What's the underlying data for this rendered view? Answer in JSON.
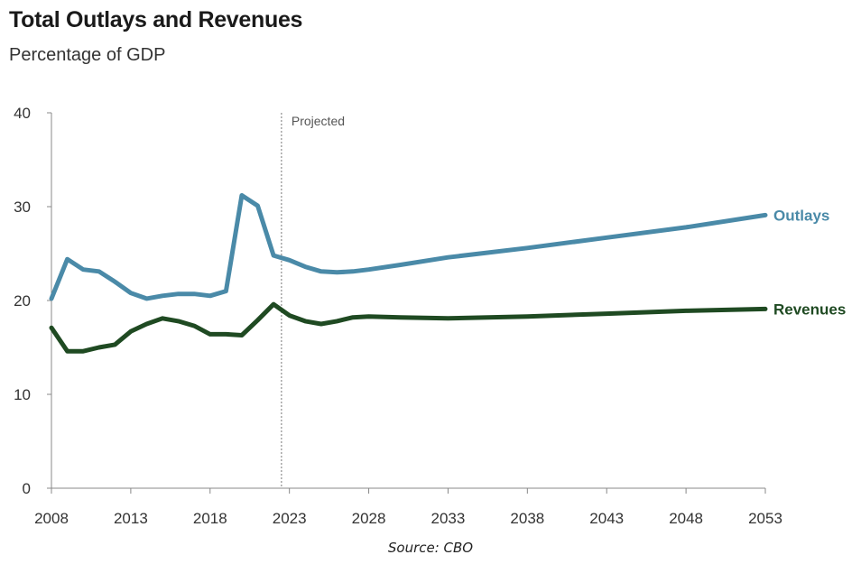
{
  "header": {
    "title": "Total Outlays and Revenues",
    "subtitle": "Percentage of GDP"
  },
  "footer": {
    "source": "Source: CBO"
  },
  "chart_data": {
    "type": "line",
    "title": "Total Outlays and Revenues",
    "subtitle": "Percentage of GDP",
    "xlabel": "",
    "ylabel": "",
    "xlim": [
      2008,
      2053
    ],
    "ylim": [
      0,
      40
    ],
    "x_ticks": [
      "2008",
      "2013",
      "2018",
      "2023",
      "2028",
      "2033",
      "2038",
      "2043",
      "2048",
      "2053"
    ],
    "y_ticks": [
      "0",
      "10",
      "20",
      "30",
      "40"
    ],
    "grid": false,
    "annotation": {
      "text": "Projected",
      "x": 2022.5
    },
    "x": [
      2008,
      2009,
      2010,
      2011,
      2012,
      2013,
      2014,
      2015,
      2016,
      2017,
      2018,
      2019,
      2020,
      2021,
      2022,
      2023,
      2024,
      2025,
      2026,
      2027,
      2028,
      2030,
      2033,
      2038,
      2043,
      2048,
      2053
    ],
    "series": [
      {
        "name": "Outlays",
        "color": "#4a8aa8",
        "values": [
          20.2,
          24.4,
          23.3,
          23.1,
          22.0,
          20.8,
          20.2,
          20.5,
          20.7,
          20.7,
          20.5,
          21.0,
          31.2,
          30.1,
          24.8,
          24.3,
          23.6,
          23.1,
          23.0,
          23.1,
          23.3,
          23.8,
          24.6,
          25.6,
          26.7,
          27.8,
          29.1
        ]
      },
      {
        "name": "Revenues",
        "color": "#1f4a22",
        "values": [
          17.1,
          14.6,
          14.6,
          15.0,
          15.3,
          16.7,
          17.5,
          18.1,
          17.8,
          17.3,
          16.4,
          16.4,
          16.3,
          17.9,
          19.6,
          18.4,
          17.8,
          17.5,
          17.8,
          18.2,
          18.3,
          18.2,
          18.1,
          18.3,
          18.6,
          18.9,
          19.1
        ]
      }
    ]
  }
}
